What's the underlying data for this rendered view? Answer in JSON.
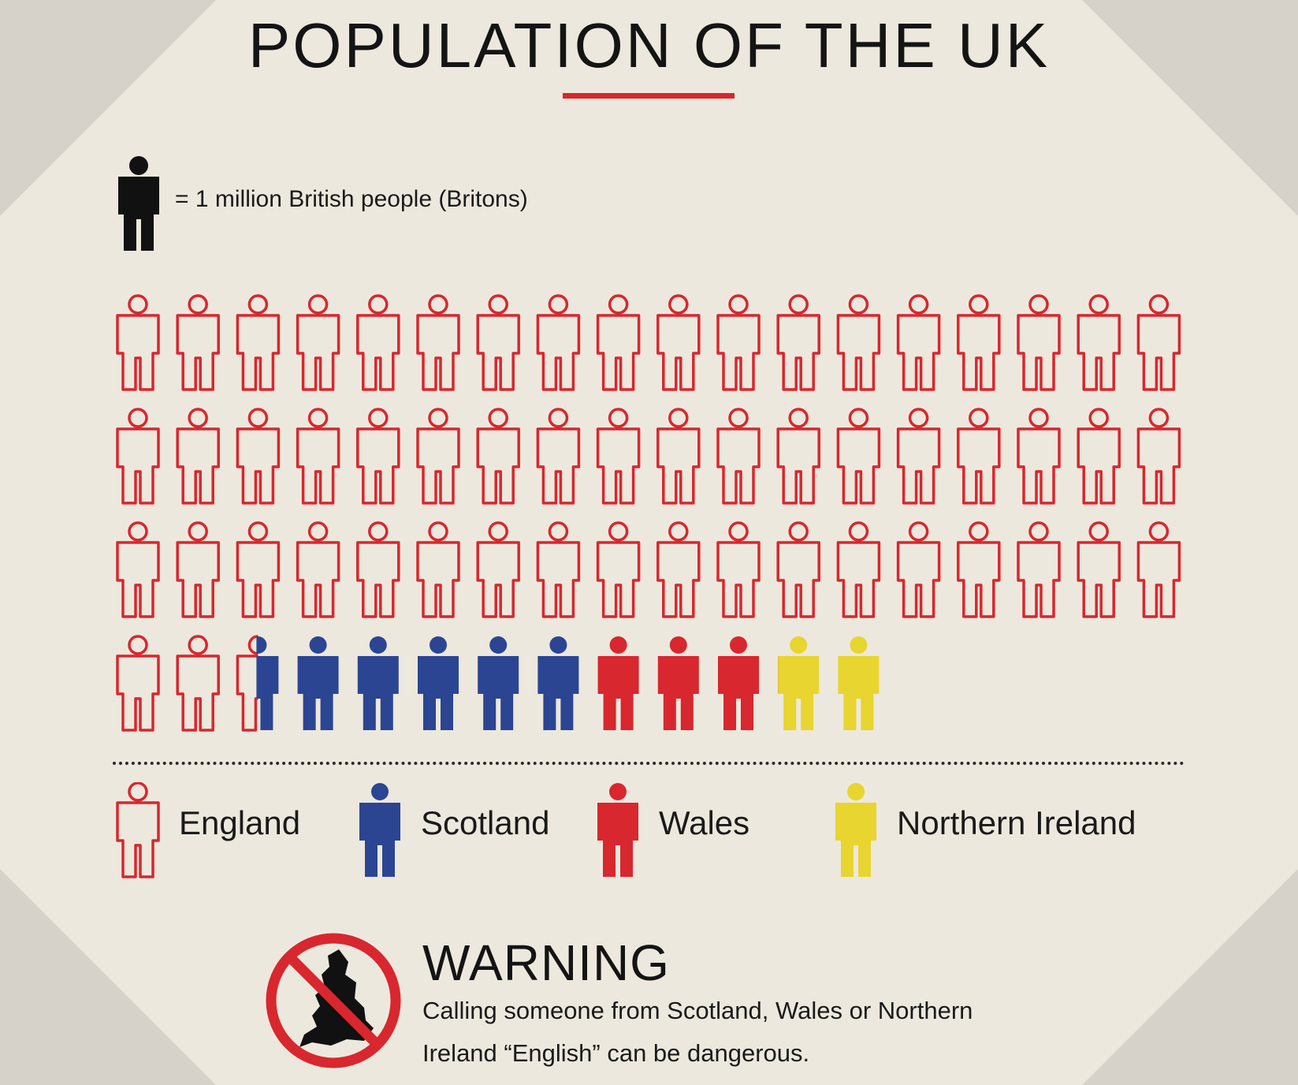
{
  "title": "POPULATION OF THE UK",
  "scale": {
    "text": "= 1 million British people (Britons)",
    "unit_millions": 1
  },
  "legend": [
    {
      "label": "England",
      "color": "#d8272e",
      "style": "outline"
    },
    {
      "label": "Scotland",
      "color": "#2b4593",
      "style": "solid"
    },
    {
      "label": "Wales",
      "color": "#d8272e",
      "style": "solid"
    },
    {
      "label": "Northern Ireland",
      "color": "#e8d52f",
      "style": "solid"
    }
  ],
  "chart_data": {
    "type": "pictogram",
    "title": "POPULATION OF THE UK",
    "unit": "1 million British people (Britons)",
    "icons_per_row": 18,
    "series": [
      {
        "name": "England",
        "value": 56.5
      },
      {
        "name": "Scotland",
        "value": 5.5
      },
      {
        "name": "Wales",
        "value": 3.1
      },
      {
        "name": "Northern Ireland",
        "value": 1.9
      }
    ]
  },
  "warning": {
    "title": "WARNING",
    "line1": "Calling someone from Scotland, Wales or Northern",
    "line2": "Ireland “English” can be dangerous."
  },
  "colors": {
    "background": "#ede8dd",
    "accent_red": "#d8272e",
    "scotland_blue": "#2b4593",
    "ni_yellow": "#e8d52f"
  }
}
